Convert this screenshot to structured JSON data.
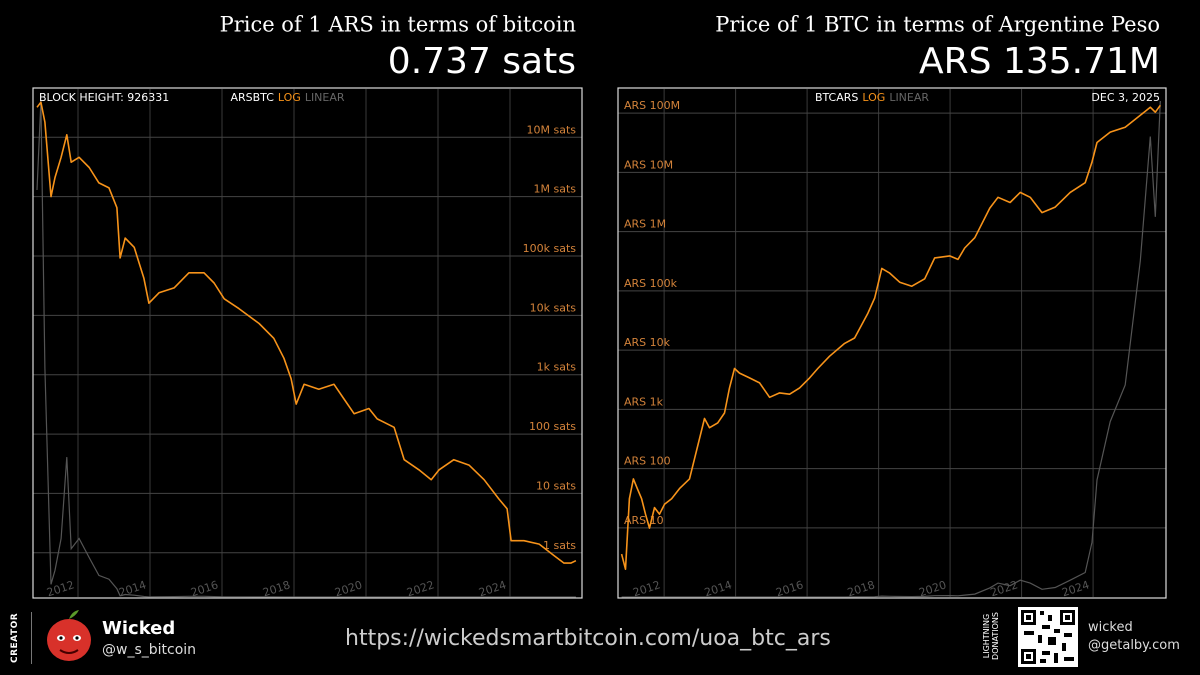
{
  "chart_data": [
    {
      "type": "line",
      "title": "Price of 1 ARS in terms of bitcoin",
      "headline": "0.737 sats",
      "corner_label": "BLOCK HEIGHT: 926331",
      "scale_options": [
        "LOG",
        "LINEAR"
      ],
      "yscale": "log",
      "grid": true,
      "linear_color": "#555555",
      "x": [
        2010.86,
        2010.97,
        2011.08,
        2011.25,
        2011.36,
        2011.53,
        2011.69,
        2011.81,
        2012.03,
        2012.31,
        2012.58,
        2012.86,
        2013.08,
        2013.17,
        2013.31,
        2013.56,
        2013.83,
        2013.97,
        2014.25,
        2014.67,
        2015.08,
        2015.5,
        2015.78,
        2016.06,
        2016.47,
        2017.03,
        2017.44,
        2017.72,
        2017.92,
        2018.06,
        2018.28,
        2018.69,
        2019.11,
        2019.39,
        2019.67,
        2020.08,
        2020.31,
        2020.78,
        2021.06,
        2021.47,
        2021.81,
        2022.03,
        2022.44,
        2022.86,
        2023.28,
        2023.69,
        2023.92,
        2024.03,
        2024.39,
        2024.81,
        2025.22,
        2025.5,
        2025.69,
        2025.83
      ],
      "series": [
        {
          "name": "ARSBTC",
          "color": "#f7931a",
          "values": [
            32000000,
            39000000,
            18000000,
            1000000,
            2100000,
            4600000,
            11000000,
            3800000,
            4600000,
            3100000,
            1700000,
            1400000,
            650000,
            93000,
            200000,
            140000,
            42000,
            16000,
            24000,
            29000,
            52000,
            52000,
            35000,
            19000,
            13000,
            7300,
            4100,
            1900,
            860,
            320,
            690,
            570,
            690,
            390,
            220,
            270,
            180,
            130,
            37,
            25,
            17,
            25,
            37,
            30,
            17,
            8.1,
            5.5,
            1.6,
            1.6,
            1.4,
            0.9,
            0.67,
            0.67,
            0.737
          ]
        }
      ],
      "xlim": [
        2010.75,
        2026.0
      ],
      "xticks": [
        2012,
        2014,
        2016,
        2018,
        2020,
        2022,
        2024
      ],
      "ylim": [
        0.18,
        65000000
      ],
      "yticks": [
        {
          "value": 1,
          "label": "1 sats"
        },
        {
          "value": 10,
          "label": "10 sats"
        },
        {
          "value": 100,
          "label": "100 sats"
        },
        {
          "value": 1000,
          "label": "1k sats"
        },
        {
          "value": 10000,
          "label": "10k sats"
        },
        {
          "value": 100000,
          "label": "100k sats"
        },
        {
          "value": 1000000,
          "label": "1M sats"
        },
        {
          "value": 10000000,
          "label": "10M sats"
        }
      ]
    },
    {
      "type": "line",
      "title": "Price of 1 BTC in terms of Argentine Peso",
      "headline": "ARS 135.71M",
      "corner_label": "DEC 3, 2025",
      "scale_options": [
        "LOG",
        "LINEAR"
      ],
      "yscale": "log",
      "grid": true,
      "linear_color": "#555555",
      "x": [
        2010.81,
        2010.92,
        2011.03,
        2011.14,
        2011.25,
        2011.37,
        2011.48,
        2011.59,
        2011.73,
        2011.87,
        2012.01,
        2012.21,
        2012.43,
        2012.71,
        2012.99,
        2013.13,
        2013.27,
        2013.5,
        2013.69,
        2013.83,
        2013.97,
        2014.11,
        2014.39,
        2014.67,
        2014.95,
        2015.23,
        2015.51,
        2015.79,
        2016.07,
        2016.3,
        2016.63,
        2017.05,
        2017.33,
        2017.7,
        2017.89,
        2018.09,
        2018.31,
        2018.59,
        2018.93,
        2019.29,
        2019.57,
        2019.99,
        2020.22,
        2020.41,
        2020.69,
        2021.11,
        2021.34,
        2021.68,
        2021.96,
        2022.24,
        2022.57,
        2022.94,
        2023.36,
        2023.78,
        2023.97,
        2024.11,
        2024.48,
        2024.9,
        2025.32,
        2025.6,
        2025.74,
        2025.88
      ],
      "series": [
        {
          "name": "BTCARS",
          "color": "#f7931a",
          "values": [
            3.6,
            2.0,
            31,
            67,
            46,
            31,
            17,
            9.9,
            22,
            17,
            25,
            31,
            46,
            67,
            320,
            700,
            490,
            590,
            870,
            2300,
            4900,
            4100,
            3400,
            2800,
            1600,
            1900,
            1800,
            2300,
            3400,
            4900,
            7900,
            13000,
            16000,
            42000,
            76000,
            240000,
            200000,
            140000,
            120000,
            160000,
            360000,
            390000,
            340000,
            530000,
            790000,
            2500000,
            3800000,
            3100000,
            4600000,
            3800000,
            2100000,
            2600000,
            4600000,
            6700000,
            15000000,
            32000000,
            48000000,
            58000000,
            92000000,
            126000000,
            104000000,
            135710000
          ]
        }
      ],
      "xlim": [
        2010.71,
        2026.04
      ],
      "xticks": [
        2012,
        2014,
        2016,
        2018,
        2020,
        2022,
        2024
      ],
      "ylim": [
        0.68,
        256000000
      ],
      "yticks": [
        {
          "value": 10,
          "label": "ARS 10"
        },
        {
          "value": 100,
          "label": "ARS 100"
        },
        {
          "value": 1000,
          "label": "ARS 1k"
        },
        {
          "value": 10000,
          "label": "ARS 10k"
        },
        {
          "value": 100000,
          "label": "ARS 100k"
        },
        {
          "value": 1000000,
          "label": "ARS 1M"
        },
        {
          "value": 10000000,
          "label": "ARS 10M"
        },
        {
          "value": 100000000,
          "label": "ARS 100M"
        }
      ]
    }
  ],
  "footer": {
    "creator_label": "CREATOR",
    "name": "Wicked",
    "handle": "@w_s_bitcoin",
    "url": "https://wickedsmartbitcoin.com/uoa_btc_ars",
    "donation_label": "LIGHTNING DONATIONS",
    "donation_name": "wicked",
    "donation_address": "@getalby.com"
  }
}
